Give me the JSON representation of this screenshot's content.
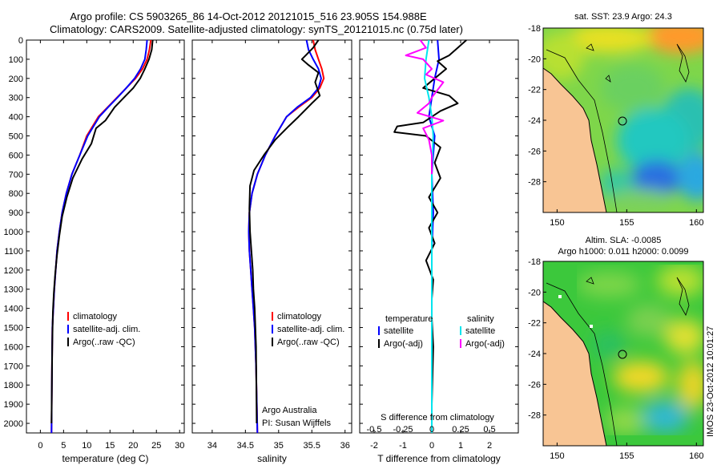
{
  "header": {
    "line1": "Argo profile: CS 5903265_86 14-Oct-2012 20121015_516 23.905S 154.988E",
    "line2": "Climatology: CARS2009. Satellite-adjusted climatology: synTS_20121015.nc (0.75d later)"
  },
  "colors": {
    "climatology": "#ff0000",
    "satellite": "#0000ff",
    "argo": "#000000",
    "sal_satellite": "#00e5ee",
    "sal_argo": "#ff00ff",
    "land": "#f8c594"
  },
  "chart_data": [
    {
      "id": "temperature",
      "type": "line",
      "xlabel": "temperature (deg C)",
      "ylabel": "",
      "xlim": [
        -3,
        31
      ],
      "xticks": [
        0,
        5,
        10,
        15,
        20,
        25,
        30
      ],
      "xticklabels": [
        "0",
        "5",
        "10",
        "15",
        "20",
        "25",
        "30"
      ],
      "ylim": [
        2050,
        0
      ],
      "yticks": [
        0,
        100,
        200,
        300,
        400,
        500,
        600,
        700,
        800,
        900,
        1000,
        1100,
        1200,
        1300,
        1400,
        1500,
        1600,
        1700,
        1800,
        1900,
        2000
      ],
      "yticklabels": [
        "0",
        "100",
        "200",
        "300",
        "400",
        "500",
        "600",
        "700",
        "800",
        "900",
        "1000",
        "1100",
        "1200",
        "1300",
        "1400",
        "1500",
        "1600",
        "1700",
        "1800",
        "1900",
        "2000"
      ],
      "legend": [
        "climatology",
        "satellite-adj. clim.",
        "Argo(..raw -QC)"
      ],
      "series": [
        {
          "name": "climatology",
          "color": "#ff0000",
          "x": [
            23.8,
            23.5,
            23.0,
            22.0,
            20.5,
            18.5,
            16.5,
            14.5,
            12.5,
            10.0,
            8.5,
            6.8,
            5.6,
            4.7,
            4.1,
            3.6,
            3.3,
            3.0,
            2.8,
            2.6,
            2.5,
            2.4
          ],
          "y": [
            0,
            50,
            100,
            150,
            200,
            250,
            300,
            350,
            400,
            500,
            600,
            700,
            800,
            900,
            1000,
            1100,
            1200,
            1300,
            1400,
            1500,
            1700,
            2050
          ]
        },
        {
          "name": "satellite-adj. clim.",
          "color": "#0000ff",
          "x": [
            23.0,
            22.8,
            22.5,
            21.6,
            20.3,
            18.5,
            16.6,
            14.6,
            12.7,
            10.2,
            8.5,
            6.8,
            5.6,
            4.7,
            4.1,
            3.6,
            3.3,
            3.0,
            2.8,
            2.6,
            2.5,
            2.4
          ],
          "y": [
            0,
            50,
            100,
            150,
            200,
            250,
            300,
            350,
            400,
            500,
            600,
            700,
            800,
            900,
            1000,
            1100,
            1200,
            1300,
            1400,
            1500,
            1700,
            2050
          ]
        },
        {
          "name": "Argo(..raw -QC)",
          "color": "#000000",
          "x": [
            24.2,
            24.0,
            23.4,
            22.5,
            21.5,
            20.0,
            18.0,
            16.0,
            14.0,
            12.0,
            11.0,
            9.0,
            7.0,
            5.7,
            4.7,
            4.1,
            3.6,
            3.2,
            2.9,
            2.7,
            2.55,
            2.4
          ],
          "y": [
            0,
            50,
            100,
            150,
            200,
            250,
            300,
            350,
            420,
            460,
            540,
            620,
            720,
            820,
            920,
            1020,
            1120,
            1220,
            1320,
            1420,
            1600,
            2000
          ]
        }
      ]
    },
    {
      "id": "salinity",
      "type": "line",
      "xlabel": "salinity",
      "xlim": [
        33.7,
        36.1
      ],
      "xticks": [
        34,
        34.5,
        35,
        35.5,
        36
      ],
      "xticklabels": [
        "34",
        "34.5",
        "35",
        "35.5",
        "36"
      ],
      "ylim": [
        2050,
        0
      ],
      "legend": [
        "climatology",
        "satellite-adj. clim.",
        "Argo(..raw -QC)"
      ],
      "annotation": [
        "Argo Australia",
        "PI: Susan Wijffels"
      ],
      "series": [
        {
          "name": "climatology",
          "color": "#ff0000",
          "x": [
            35.52,
            35.55,
            35.6,
            35.65,
            35.68,
            35.62,
            35.5,
            35.3,
            35.12,
            34.95,
            34.8,
            34.68,
            34.6,
            34.56,
            34.55,
            34.56,
            34.58,
            34.6,
            34.62,
            34.64,
            34.66,
            34.68
          ],
          "y": [
            0,
            50,
            100,
            150,
            200,
            250,
            300,
            350,
            400,
            500,
            600,
            700,
            800,
            900,
            1000,
            1100,
            1200,
            1300,
            1400,
            1500,
            1700,
            2050
          ]
        },
        {
          "name": "satellite-adj. clim.",
          "color": "#0000ff",
          "x": [
            35.42,
            35.45,
            35.52,
            35.6,
            35.64,
            35.6,
            35.48,
            35.28,
            35.12,
            34.95,
            34.8,
            34.68,
            34.6,
            34.56,
            34.55,
            34.56,
            34.58,
            34.6,
            34.62,
            34.64,
            34.66,
            34.68
          ],
          "y": [
            0,
            50,
            100,
            150,
            200,
            250,
            300,
            350,
            400,
            500,
            600,
            700,
            800,
            900,
            1000,
            1100,
            1200,
            1300,
            1400,
            1500,
            1700,
            2050
          ]
        },
        {
          "name": "Argo(..raw -QC)",
          "color": "#000000",
          "x": [
            35.6,
            35.52,
            35.35,
            35.45,
            35.6,
            35.55,
            35.62,
            35.5,
            35.3,
            35.15,
            34.95,
            34.78,
            34.63,
            34.57,
            34.56,
            34.57,
            34.59,
            34.61,
            34.62,
            34.64,
            34.66,
            34.67
          ],
          "y": [
            0,
            40,
            100,
            130,
            170,
            220,
            290,
            330,
            400,
            450,
            520,
            600,
            680,
            760,
            880,
            1000,
            1100,
            1200,
            1300,
            1400,
            1600,
            2000
          ]
        }
      ]
    },
    {
      "id": "difference",
      "type": "line",
      "xlabel": "T difference from climatology",
      "xlabel_top": "S difference from climatology",
      "xlim": [
        -2.5,
        3
      ],
      "xticks": [
        -2,
        -1,
        0,
        1,
        2
      ],
      "xticklabels": [
        "-2",
        "-1",
        "0",
        "1",
        "2"
      ],
      "xticks_s": [
        -2,
        -1,
        0,
        1,
        2
      ],
      "xticklabels_s": [
        "-0.5",
        "-0.25",
        "0",
        "0.25",
        "0.5"
      ],
      "ylim": [
        2050,
        0
      ],
      "legend_temperature_title": "temperature",
      "legend_salinity_title": "salinity",
      "legend": [
        "satellite",
        "Argo(-adj)",
        "satellite",
        "Argo(-adj)"
      ],
      "series": [
        {
          "name": "temperature satellite",
          "color": "#0000ff",
          "x": [
            0.2,
            0.25,
            0.1,
            0.0,
            -0.1,
            0.1,
            0.0,
            0.05,
            0.0,
            0.0,
            0.0,
            0.0
          ],
          "y": [
            0,
            100,
            200,
            300,
            400,
            500,
            700,
            900,
            1100,
            1300,
            1500,
            1900
          ]
        },
        {
          "name": "temperature Argo(-adj)",
          "color": "#000000",
          "x": [
            1.2,
            0.9,
            0.6,
            0.2,
            0.5,
            0.1,
            -0.3,
            0.6,
            0.9,
            0.3,
            -0.3,
            -1.2,
            -1.3,
            -0.2,
            0.3,
            0.1,
            0.3,
            -0.1,
            0.2,
            -0.1,
            0.1,
            -0.2,
            0.05,
            0.0,
            0.0,
            0.05,
            0.0
          ],
          "y": [
            0,
            40,
            80,
            110,
            150,
            200,
            250,
            290,
            330,
            370,
            430,
            450,
            480,
            500,
            560,
            640,
            720,
            820,
            900,
            980,
            1060,
            1150,
            1250,
            1350,
            1450,
            1600,
            1900
          ]
        },
        {
          "name": "salinity satellite",
          "color": "#00e5ee",
          "x": [
            -0.1,
            -0.2,
            -0.25,
            -0.1,
            0.0,
            0.05,
            0.0,
            0.0,
            0.0,
            0.0
          ],
          "y": [
            0,
            100,
            200,
            300,
            400,
            500,
            700,
            1000,
            1500,
            2050
          ]
        },
        {
          "name": "salinity Argo(-adj)",
          "color": "#ff00ff",
          "x": [
            -0.4,
            -0.2,
            -0.9,
            -0.3,
            0.0,
            -0.2,
            0.4,
            0.0,
            -0.1,
            -0.5,
            0.4,
            -0.3,
            -0.1,
            0.0,
            0.0
          ],
          "y": [
            0,
            40,
            80,
            100,
            150,
            180,
            220,
            300,
            330,
            380,
            420,
            460,
            520,
            600,
            700
          ]
        }
      ]
    }
  ],
  "maps": [
    {
      "id": "sst",
      "title_line1": "sat. SST: 23.9 Argo: 24.3",
      "title_line2": "",
      "xticks": [
        150,
        155,
        160
      ],
      "xticklabels": [
        "150",
        "155",
        "160"
      ],
      "yticks": [
        -18,
        -20,
        -22,
        -24,
        -26,
        -28
      ],
      "yticklabels": [
        "-18",
        "-20",
        "-22",
        "-24",
        "-26",
        "-28"
      ],
      "lon_range": [
        149,
        160.5
      ],
      "lat_range": [
        -30,
        -18
      ]
    },
    {
      "id": "sla",
      "title_line1": "Altim. SLA: -0.0085",
      "title_line2": "Argo h1000: 0.011 h2000: 0.0099",
      "xticks": [
        150,
        155,
        160
      ],
      "xticklabels": [
        "150",
        "155",
        "160"
      ],
      "yticks": [
        -18,
        -20,
        -22,
        -24,
        -26,
        -28
      ],
      "yticklabels": [
        "-18",
        "-20",
        "-22",
        "-24",
        "-26",
        "-28"
      ],
      "lon_range": [
        149,
        160.5
      ],
      "lat_range": [
        -30,
        -18
      ]
    }
  ],
  "side_stamp": "IMOS 23-Oct-2012 10:01:27"
}
